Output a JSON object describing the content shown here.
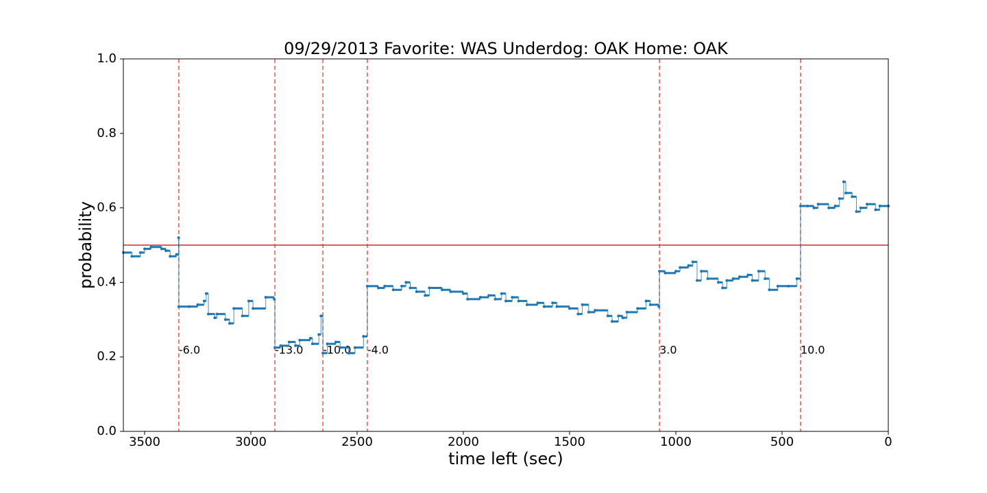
{
  "chart_data": {
    "type": "line",
    "step": "post",
    "title": "09/29/2013 Favorite: WAS Underdog: OAK Home: OAK",
    "xlabel": "time left (sec)",
    "ylabel": "probability",
    "xlim": [
      3600,
      0
    ],
    "ylim": [
      0,
      1
    ],
    "xticks": [
      3500,
      3000,
      2500,
      2000,
      1500,
      1000,
      500,
      0
    ],
    "yticks": [
      {
        "value": 0,
        "label": "0.0"
      },
      {
        "value": 0.2,
        "label": "0.2"
      },
      {
        "value": 0.4,
        "label": "0.4"
      },
      {
        "value": 0.6,
        "label": "0.6"
      },
      {
        "value": 0.8,
        "label": "0.8"
      },
      {
        "value": 1,
        "label": "1.0"
      }
    ],
    "hlines": [
      {
        "y": 0.5,
        "color": "#d62728"
      }
    ],
    "vlines": [
      {
        "x": 3339,
        "label": "-6.0",
        "label_y": 0.21
      },
      {
        "x": 2887,
        "label": "-13.0",
        "label_y": 0.21
      },
      {
        "x": 2661,
        "label": "-10.0",
        "label_y": 0.21
      },
      {
        "x": 2452,
        "label": "-4.0",
        "label_y": 0.21
      },
      {
        "x": 1077,
        "label": "3.0",
        "label_y": 0.21
      },
      {
        "x": 413,
        "label": "10.0",
        "label_y": 0.21
      }
    ],
    "vline_color": "#ef5350",
    "x": [
      3600,
      3560,
      3520,
      3500,
      3470,
      3420,
      3400,
      3380,
      3350,
      3340,
      3339,
      3290,
      3250,
      3220,
      3210,
      3200,
      3170,
      3160,
      3120,
      3100,
      3080,
      3040,
      3010,
      2990,
      2930,
      2890,
      2887,
      2860,
      2820,
      2790,
      2770,
      2720,
      2710,
      2680,
      2670,
      2661,
      2640,
      2600,
      2580,
      2540,
      2510,
      2470,
      2452,
      2400,
      2370,
      2330,
      2290,
      2270,
      2250,
      2220,
      2180,
      2160,
      2100,
      2060,
      2000,
      1980,
      1920,
      1880,
      1850,
      1820,
      1800,
      1770,
      1740,
      1700,
      1650,
      1620,
      1580,
      1560,
      1500,
      1460,
      1440,
      1410,
      1380,
      1320,
      1300,
      1270,
      1250,
      1230,
      1180,
      1140,
      1120,
      1080,
      1077,
      1050,
      1000,
      980,
      940,
      920,
      900,
      880,
      850,
      800,
      780,
      760,
      730,
      700,
      660,
      640,
      610,
      580,
      560,
      520,
      470,
      430,
      413,
      380,
      350,
      330,
      280,
      250,
      230,
      210,
      200,
      170,
      150,
      130,
      100,
      60,
      40,
      0
    ],
    "series": [
      {
        "color": "#1f77b4",
        "values": [
          0.48,
          0.47,
          0.48,
          0.49,
          0.495,
          0.49,
          0.485,
          0.47,
          0.475,
          0.52,
          0.335,
          0.335,
          0.34,
          0.35,
          0.37,
          0.315,
          0.305,
          0.315,
          0.3,
          0.29,
          0.33,
          0.31,
          0.35,
          0.33,
          0.36,
          0.355,
          0.225,
          0.23,
          0.24,
          0.23,
          0.245,
          0.25,
          0.235,
          0.26,
          0.31,
          0.21,
          0.235,
          0.24,
          0.225,
          0.21,
          0.225,
          0.255,
          0.39,
          0.385,
          0.39,
          0.38,
          0.39,
          0.4,
          0.385,
          0.375,
          0.365,
          0.385,
          0.38,
          0.375,
          0.37,
          0.355,
          0.36,
          0.365,
          0.355,
          0.37,
          0.35,
          0.36,
          0.35,
          0.34,
          0.345,
          0.335,
          0.345,
          0.335,
          0.33,
          0.315,
          0.34,
          0.32,
          0.325,
          0.31,
          0.295,
          0.31,
          0.305,
          0.32,
          0.33,
          0.35,
          0.34,
          0.335,
          0.43,
          0.425,
          0.43,
          0.44,
          0.445,
          0.455,
          0.405,
          0.43,
          0.41,
          0.4,
          0.385,
          0.405,
          0.41,
          0.415,
          0.42,
          0.405,
          0.43,
          0.41,
          0.38,
          0.39,
          0.39,
          0.41,
          0.605,
          0.605,
          0.6,
          0.61,
          0.6,
          0.605,
          0.625,
          0.67,
          0.64,
          0.63,
          0.59,
          0.6,
          0.61,
          0.595,
          0.605,
          0.605
        ]
      }
    ]
  }
}
